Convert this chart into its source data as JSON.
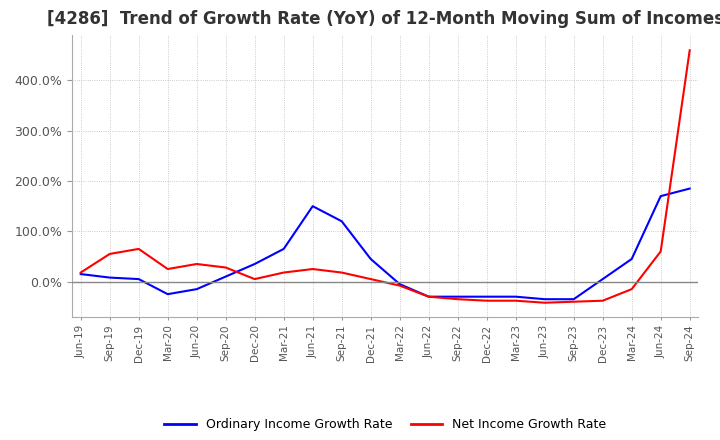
{
  "title": "[4286]  Trend of Growth Rate (YoY) of 12-Month Moving Sum of Incomes",
  "title_fontsize": 12,
  "legend_labels": [
    "Ordinary Income Growth Rate",
    "Net Income Growth Rate"
  ],
  "legend_colors": [
    "#0000FF",
    "#FF0000"
  ],
  "x_labels": [
    "Jun-19",
    "Sep-19",
    "Dec-19",
    "Mar-20",
    "Jun-20",
    "Sep-20",
    "Dec-20",
    "Mar-21",
    "Jun-21",
    "Sep-21",
    "Dec-21",
    "Mar-22",
    "Jun-22",
    "Sep-22",
    "Dec-22",
    "Mar-23",
    "Jun-23",
    "Sep-23",
    "Dec-23",
    "Mar-24",
    "Jun-24",
    "Sep-24"
  ],
  "ordinary_income_gr": [
    15,
    8,
    5,
    -25,
    -15,
    10,
    35,
    65,
    150,
    120,
    45,
    -5,
    -30,
    -30,
    -30,
    -30,
    -35,
    -35,
    5,
    45,
    170,
    185
  ],
  "net_income_gr": [
    18,
    55,
    65,
    25,
    35,
    28,
    5,
    18,
    25,
    18,
    5,
    -8,
    -30,
    -35,
    -38,
    -38,
    -42,
    -40,
    -38,
    -15,
    60,
    460
  ],
  "ylim_min": -70,
  "ylim_max": 490,
  "yticks": [
    0,
    100,
    200,
    300,
    400
  ],
  "background_color": "#FFFFFF",
  "grid_color": "#BBBBBB",
  "plot_area_color": "#FFFFFF"
}
